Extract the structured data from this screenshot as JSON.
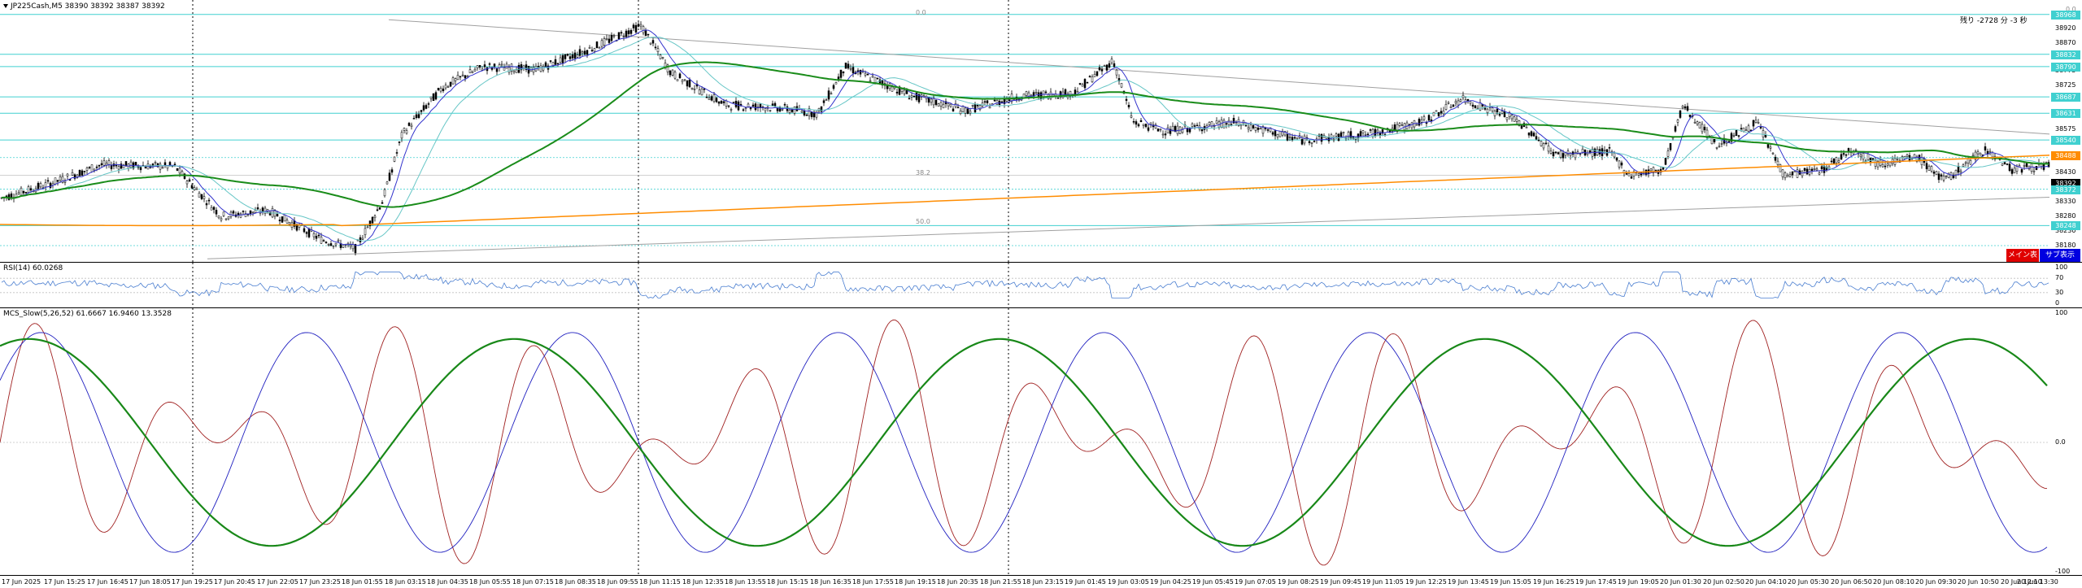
{
  "chart_header": {
    "symbol_line": "JP225Cash,M5  38390 38392 38387 38392",
    "countdown": "残り -2728 分 -3 秒"
  },
  "colors": {
    "candles": "#000000",
    "ma_fast": "#3333cc",
    "ma_mid": "#66c6c6",
    "ma_slow": "#1a8c1a",
    "ma_long": "#ff8c00",
    "level_lines": "#40d0d0",
    "trend_lines": "#a0a0a0",
    "rsi_line": "#4a7ed0",
    "stoch_red": "#a02020",
    "stoch_blue": "#2020c0",
    "stoch_green": "#188818",
    "btn_main": "#e00000",
    "btn_sub": "#0000e0"
  },
  "main_panel": {
    "price_axis": [
      "38970",
      "38920",
      "38870",
      "38820",
      "38775",
      "38725",
      "38675",
      "38625",
      "38575",
      "38530",
      "38480",
      "38430",
      "38380",
      "38330",
      "38280",
      "38230",
      "38180",
      "38130"
    ],
    "level_tags": [
      {
        "text": "38968",
        "color": "#40d0d0"
      },
      {
        "text": "38832",
        "color": "#40d0d0"
      },
      {
        "text": "38790",
        "color": "#40d0d0"
      },
      {
        "text": "38687",
        "color": "#40d0d0"
      },
      {
        "text": "38631",
        "color": "#40d0d0"
      },
      {
        "text": "38540",
        "color": "#40d0d0"
      },
      {
        "text": "38488",
        "color": "#ff8c00"
      },
      {
        "text": "38392",
        "color": "#000000"
      },
      {
        "text": "38372",
        "color": "#40d0d0"
      },
      {
        "text": "38248",
        "color": "#40d0d0"
      }
    ],
    "fib_labels": [
      "0.0",
      "38.2",
      "50.0",
      "0.0"
    ],
    "buttons": {
      "main": "メイン表示",
      "sub": "サブ表示"
    }
  },
  "rsi_panel": {
    "title": "RSI(14) 60.0268",
    "axis": [
      "100",
      "70",
      "30",
      "0"
    ]
  },
  "stoch_panel": {
    "title": "MCS_Slow(5,26,52) 61.6667 16.9460 13.3528",
    "axis": [
      "100",
      "0.0",
      "-100"
    ]
  },
  "time_axis": [
    "17 Jun 2025",
    "17 Jun 15:25",
    "17 Jun 16:45",
    "17 Jun 18:05",
    "17 Jun 19:25",
    "17 Jun 20:45",
    "17 Jun 22:05",
    "17 Jun 23:25",
    "18 Jun 01:55",
    "18 Jun 03:15",
    "18 Jun 04:35",
    "18 Jun 05:55",
    "18 Jun 07:15",
    "18 Jun 08:35",
    "18 Jun 09:55",
    "18 Jun 11:15",
    "18 Jun 12:35",
    "18 Jun 13:55",
    "18 Jun 15:15",
    "18 Jun 16:35",
    "18 Jun 17:55",
    "18 Jun 19:15",
    "18 Jun 20:35",
    "18 Jun 21:55",
    "18 Jun 23:15",
    "19 Jun 01:45",
    "19 Jun 03:05",
    "19 Jun 04:25",
    "19 Jun 05:45",
    "19 Jun 07:05",
    "19 Jun 08:25",
    "19 Jun 09:45",
    "19 Jun 11:05",
    "19 Jun 12:25",
    "19 Jun 13:45",
    "19 Jun 15:05",
    "19 Jun 16:25",
    "19 Jun 17:45",
    "19 Jun 19:05",
    "20 Jun 01:30",
    "20 Jun 02:50",
    "20 Jun 04:10",
    "20 Jun 05:30",
    "20 Jun 06:50",
    "20 Jun 08:10",
    "20 Jun 09:30",
    "20 Jun 10:50",
    "20 Jun 12:10",
    "20 Jun 13:30"
  ]
}
